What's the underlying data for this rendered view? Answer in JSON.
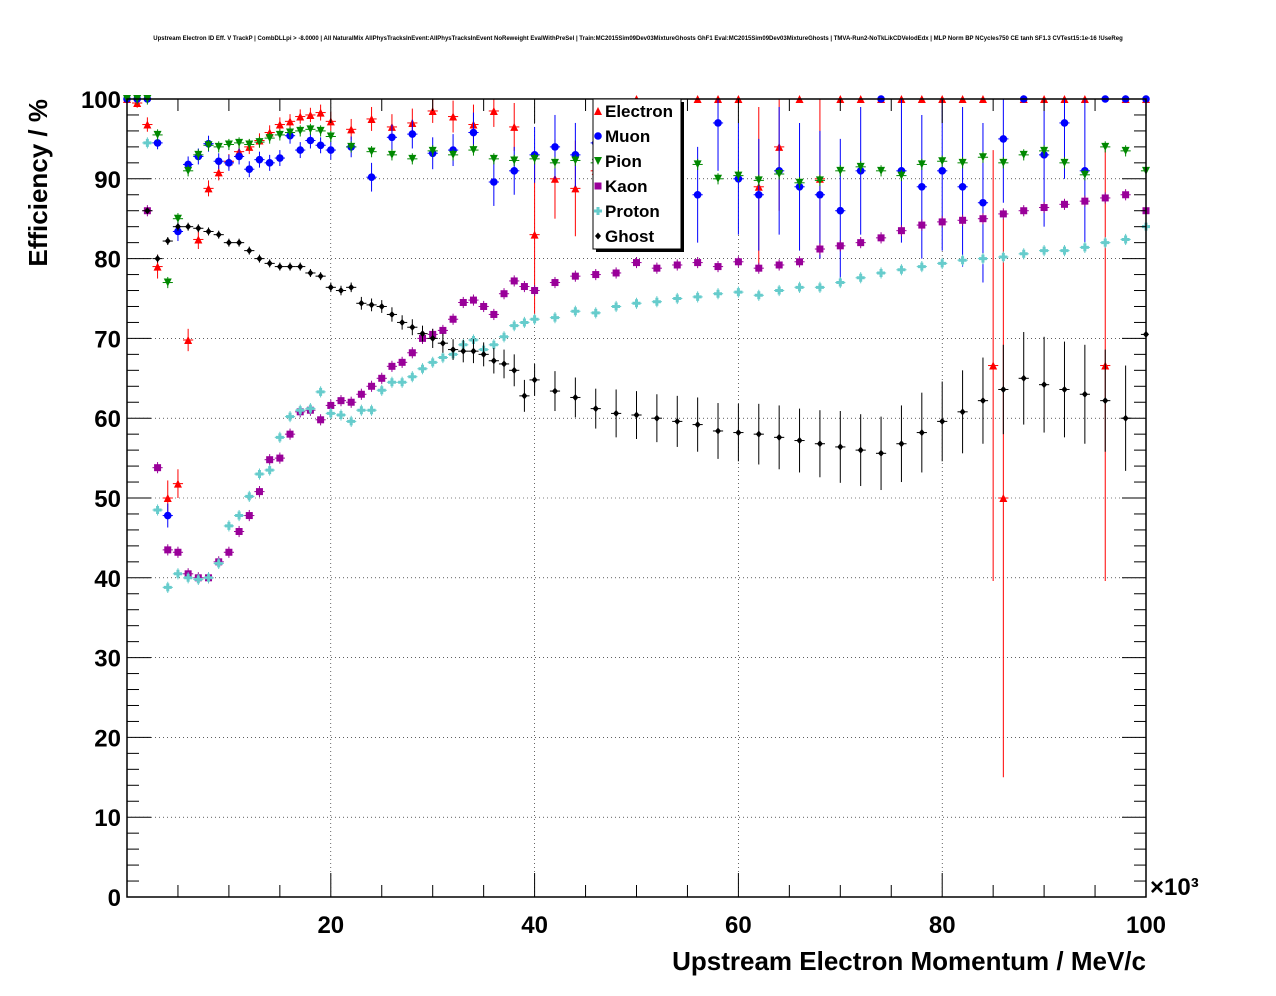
{
  "title": "Upstream Electron ID Eff. V TrackP | CombDLLpi > -8.0000 | All NaturalMix AllPhysTracksInEvent:AllPhysTracksInEvent NoReweight EvalWithPreSel | Train:MC2015Sim09Dev03MixtureGhosts GhF1 Eval:MC2015Sim09Dev03MixtureGhosts | TMVA-Run2-NoTkLikCDVelodEdx | MLP Norm BP NCycles750 CE tanh SF1.3 CVTest15:1e-16 !UseReg",
  "chart_data": {
    "type": "scatter",
    "title": "Upstream Electron ID Eff. V TrackP | CombDLLpi > -8.0000 | All NaturalMix AllPhysTracksInEvent:AllPhysTracksInEvent NoReweight EvalWithPreSel | Train:MC2015Sim09Dev03MixtureGhosts GhF1 Eval:MC2015Sim09Dev03MixtureGhosts | TMVA-Run2-NoTkLikCDVelodEdx | MLP Norm BP NCycles750 CE tanh SF1.3 CVTest15:1e-16 !UseReg",
    "xlabel": "Upstream Electron Momentum / MeV/c",
    "ylabel": "Efficiency / %",
    "x_multiplier": "×10³",
    "xlim": [
      0,
      100
    ],
    "ylim": [
      0,
      100
    ],
    "x_ticks": [
      20,
      40,
      60,
      80,
      100
    ],
    "y_ticks": [
      0,
      10,
      20,
      30,
      40,
      50,
      60,
      70,
      80,
      90,
      100
    ],
    "grid": true,
    "legend_position": "top-center",
    "series": [
      {
        "name": "Electron",
        "color": "#ff0000",
        "marker": "triangle-up",
        "x": [
          0,
          1,
          2,
          3,
          4,
          5,
          6,
          7,
          8,
          9,
          10,
          11,
          12,
          13,
          14,
          15,
          16,
          17,
          18,
          19,
          20,
          22,
          24,
          26,
          28,
          30,
          32,
          34,
          36,
          38,
          40,
          42,
          44,
          46,
          50,
          52,
          54,
          56,
          58,
          60,
          62,
          64,
          66,
          68,
          70,
          72,
          74,
          76,
          78,
          80,
          82,
          84,
          85,
          86,
          88,
          90,
          92,
          94,
          96,
          98,
          100
        ],
        "y": [
          100,
          99.5,
          96.8,
          79,
          50,
          51.8,
          69.8,
          82.4,
          88.8,
          90.8,
          92.2,
          93.4,
          94,
          94.8,
          95.8,
          96.8,
          97.2,
          97.8,
          98,
          98.3,
          97.2,
          96.2,
          97.5,
          96.5,
          97,
          98.5,
          97.8,
          96.8,
          98.5,
          96.5,
          83,
          90,
          88.8,
          91,
          100,
          95,
          94,
          100,
          100,
          100,
          89,
          94,
          100,
          90,
          100,
          100,
          100,
          100,
          100,
          100,
          100,
          100,
          66.6,
          50,
          100,
          100,
          100,
          100,
          66.6,
          100,
          100
        ],
        "yerr": [
          0.5,
          0.6,
          0.9,
          1.5,
          2.2,
          1.8,
          1.4,
          1.2,
          1.0,
          1.0,
          0.9,
          0.9,
          0.9,
          0.9,
          0.9,
          0.9,
          0.9,
          0.9,
          0.9,
          1.0,
          1.2,
          1.3,
          1.5,
          1.6,
          1.8,
          1.5,
          2,
          2.5,
          2,
          3,
          10,
          5,
          6,
          6,
          0,
          6,
          7,
          0,
          0,
          0,
          10,
          8,
          0,
          10,
          0,
          0,
          0,
          0,
          0,
          0,
          0,
          0,
          27,
          35,
          0,
          0,
          0,
          0,
          27,
          0,
          0
        ]
      },
      {
        "name": "Muon",
        "color": "#0000ff",
        "marker": "circle",
        "x": [
          0,
          1,
          2,
          3,
          4,
          5,
          6,
          7,
          8,
          9,
          10,
          11,
          12,
          13,
          14,
          15,
          16,
          17,
          18,
          19,
          20,
          22,
          24,
          26,
          28,
          30,
          32,
          34,
          36,
          38,
          40,
          42,
          44,
          46,
          48,
          50,
          52,
          54,
          56,
          58,
          60,
          62,
          64,
          66,
          68,
          70,
          72,
          74,
          76,
          78,
          80,
          82,
          84,
          86,
          88,
          90,
          92,
          94,
          96,
          98,
          100
        ],
        "y": [
          100,
          100,
          100,
          94.5,
          47.8,
          83.4,
          91.8,
          92.8,
          94.4,
          92.2,
          92,
          92.8,
          91.2,
          92.4,
          92,
          92.6,
          95.4,
          93.6,
          94.8,
          94.2,
          93.6,
          94,
          90.2,
          95.2,
          95.6,
          93.2,
          93.6,
          95.8,
          89.6,
          91,
          93,
          94,
          93,
          94.5,
          92,
          93,
          92.8,
          94,
          88,
          97,
          90,
          88,
          91,
          89,
          88,
          86,
          91,
          100,
          91,
          89,
          91,
          89,
          87,
          95,
          100,
          93,
          97,
          91,
          100,
          100,
          100
        ],
        "yerr": [
          0.4,
          0.4,
          0.4,
          0.8,
          1.5,
          1.2,
          1.0,
          1.0,
          1.0,
          1.0,
          1.0,
          1.0,
          1.0,
          1.0,
          1.0,
          1.0,
          1.0,
          1.0,
          1.0,
          1.0,
          1.2,
          1.3,
          1.8,
          1.6,
          1.8,
          2,
          2,
          2.5,
          3,
          3,
          3.5,
          4,
          4,
          4.5,
          5,
          5,
          5,
          6,
          6,
          6,
          7,
          7,
          8,
          8,
          8,
          9,
          8,
          0,
          9,
          9,
          10,
          10,
          10,
          8,
          0,
          9,
          7,
          9,
          0,
          0,
          0
        ]
      },
      {
        "name": "Pion",
        "color": "#008800",
        "marker": "triangle-down",
        "x": [
          0,
          1,
          2,
          3,
          4,
          5,
          6,
          7,
          8,
          9,
          10,
          11,
          12,
          13,
          14,
          15,
          16,
          17,
          18,
          19,
          20,
          22,
          24,
          26,
          28,
          30,
          32,
          34,
          36,
          38,
          40,
          42,
          44,
          46,
          48,
          50,
          52,
          54,
          56,
          58,
          60,
          62,
          64,
          66,
          68,
          70,
          72,
          74,
          76,
          78,
          80,
          82,
          84,
          86,
          88,
          90,
          92,
          94,
          96,
          98,
          100
        ],
        "y": [
          100,
          100,
          100,
          95.5,
          77,
          85,
          91,
          93,
          94.2,
          94,
          94.3,
          94.5,
          94.3,
          94.6,
          95.1,
          95.5,
          95.8,
          96,
          96.2,
          96,
          95.3,
          94,
          93.4,
          93,
          92.5,
          93.5,
          93,
          93.6,
          92.5,
          92.3,
          92.5,
          92,
          92.3,
          92,
          92.5,
          91.8,
          92,
          91.5,
          91.8,
          90,
          90.4,
          89.8,
          90.6,
          89.5,
          89.8,
          91,
          91.5,
          91,
          90.4,
          91.8,
          92.2,
          92,
          92.7,
          92,
          93,
          93.5,
          92,
          90.5,
          94,
          93.5,
          91
        ]
      },
      {
        "name": "Kaon",
        "color": "#990099",
        "marker": "square",
        "x": [
          2,
          3,
          4,
          5,
          6,
          7,
          8,
          9,
          10,
          11,
          12,
          13,
          14,
          15,
          16,
          17,
          18,
          19,
          20,
          21,
          22,
          23,
          24,
          25,
          26,
          27,
          28,
          29,
          30,
          31,
          32,
          33,
          34,
          35,
          36,
          37,
          38,
          39,
          40,
          42,
          44,
          46,
          48,
          50,
          52,
          54,
          56,
          58,
          60,
          62,
          64,
          66,
          68,
          70,
          72,
          74,
          76,
          78,
          80,
          82,
          84,
          86,
          88,
          90,
          92,
          94,
          96,
          98,
          100
        ],
        "y": [
          86,
          53.8,
          43.5,
          43.2,
          40.5,
          40,
          40,
          42,
          43.2,
          45.8,
          47.8,
          50.8,
          54.8,
          55,
          58,
          60.8,
          61,
          59.8,
          61.6,
          62.2,
          62,
          63,
          64,
          65,
          66.5,
          67,
          68.2,
          70,
          70.5,
          71,
          72.4,
          74.5,
          74.8,
          74,
          73,
          75.6,
          77.2,
          76.5,
          76,
          77,
          77.8,
          78,
          78.2,
          79.5,
          78.8,
          79.2,
          79.5,
          79,
          79.6,
          78.8,
          79.2,
          79.6,
          81.2,
          81.6,
          82,
          82.6,
          83.5,
          84.2,
          84.6,
          84.8,
          85,
          85.6,
          86,
          86.4,
          86.8,
          87.2,
          87.6,
          88,
          86
        ]
      },
      {
        "name": "Proton",
        "color": "#66cccc",
        "marker": "cross",
        "x": [
          2,
          3,
          4,
          5,
          6,
          7,
          8,
          9,
          10,
          11,
          12,
          13,
          14,
          15,
          16,
          17,
          18,
          19,
          20,
          21,
          22,
          23,
          24,
          25,
          26,
          27,
          28,
          29,
          30,
          31,
          32,
          33,
          34,
          35,
          36,
          37,
          38,
          39,
          40,
          42,
          44,
          46,
          48,
          50,
          52,
          54,
          56,
          58,
          60,
          62,
          64,
          66,
          68,
          70,
          72,
          74,
          76,
          78,
          80,
          82,
          84,
          86,
          88,
          90,
          92,
          94,
          96,
          98,
          100
        ],
        "y": [
          94.5,
          48.5,
          38.8,
          40.5,
          40,
          39.8,
          40,
          41.8,
          46.5,
          47.8,
          50.2,
          53,
          53.5,
          57.6,
          60.2,
          61,
          61.2,
          63.3,
          60.6,
          60.4,
          59.6,
          61,
          61,
          63.5,
          64.5,
          64.5,
          65.2,
          66.2,
          67,
          67.6,
          68,
          69.2,
          69.8,
          68.6,
          69.2,
          70.2,
          71.6,
          72,
          72.4,
          72.6,
          73.4,
          73.2,
          74,
          74.4,
          74.6,
          75,
          75.2,
          75.6,
          75.8,
          75.4,
          76,
          76.4,
          76.4,
          77,
          77.6,
          78.2,
          78.6,
          79,
          79.4,
          79.8,
          80,
          80.2,
          80.6,
          81,
          81,
          81.4,
          82,
          82.4,
          84
        ]
      },
      {
        "name": "Ghost",
        "color": "#000000",
        "marker": "diamond",
        "x": [
          2,
          3,
          4,
          5,
          6,
          7,
          8,
          9,
          10,
          11,
          12,
          13,
          14,
          15,
          16,
          17,
          18,
          19,
          20,
          21,
          22,
          23,
          24,
          25,
          26,
          27,
          28,
          29,
          30,
          31,
          32,
          33,
          34,
          35,
          36,
          37,
          38,
          39,
          40,
          42,
          44,
          46,
          48,
          50,
          52,
          54,
          56,
          58,
          60,
          62,
          64,
          66,
          68,
          70,
          72,
          74,
          76,
          78,
          80,
          82,
          84,
          86,
          88,
          90,
          92,
          94,
          96,
          98,
          100
        ],
        "y": [
          86,
          80,
          82.2,
          84,
          84,
          83.8,
          83.4,
          83,
          82,
          82,
          81,
          80,
          79.4,
          79,
          79,
          79,
          78.2,
          77.8,
          76.4,
          76,
          76.4,
          74.4,
          74.2,
          74,
          73,
          72,
          71.4,
          70.6,
          70,
          69.4,
          68.6,
          68.4,
          68.4,
          68,
          67.2,
          66.8,
          66,
          62.8,
          64.8,
          63.4,
          62.6,
          61.2,
          60.6,
          60.4,
          60,
          59.6,
          59.2,
          58.4,
          58.2,
          58,
          57.6,
          57.2,
          56.8,
          56.4,
          56,
          55.6,
          56.8,
          58.2,
          59.6,
          60.8,
          62.2,
          63.6,
          65,
          64.2,
          63.6,
          63,
          62.2,
          60,
          70.5
        ],
        "yerr": [
          0.4,
          0.5,
          0.5,
          0.5,
          0.5,
          0.5,
          0.5,
          0.5,
          0.5,
          0.5,
          0.5,
          0.5,
          0.5,
          0.5,
          0.5,
          0.5,
          0.5,
          0.5,
          0.6,
          0.6,
          0.6,
          0.8,
          0.8,
          0.8,
          0.9,
          0.9,
          1.0,
          1.0,
          1.2,
          1.2,
          1.3,
          1.4,
          1.5,
          1.5,
          1.6,
          1.8,
          2,
          2,
          2,
          2.5,
          2.5,
          2.5,
          3,
          3,
          3,
          3.2,
          3.4,
          3.5,
          3.6,
          3.8,
          4,
          4,
          4.2,
          4.5,
          4.5,
          4.6,
          4.8,
          5,
          5,
          5.2,
          5.4,
          5.6,
          5.8,
          6,
          6,
          6.2,
          6.4,
          6.6,
          6.8
        ]
      }
    ]
  }
}
